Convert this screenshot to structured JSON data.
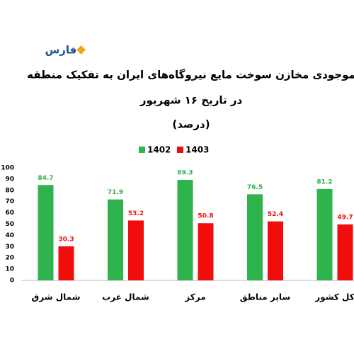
{
  "logo": "فارس",
  "chart_data": {
    "type": "bar",
    "title": "موجودی مخازن سوخت مایع نیروگاه‌های ایران به تفکیک منطقه",
    "subtitle": "در تاریخ ۱۶ شهریور",
    "unit_label": "(درصد)",
    "categories": [
      "شمال شرق",
      "شمال غرب",
      "مرکز",
      "سایر مناطق",
      "کل کشور"
    ],
    "series": [
      {
        "name": "1402",
        "color": "#2fb34d",
        "values": [
          84.7,
          71.9,
          89.3,
          76.5,
          81.2
        ]
      },
      {
        "name": "1403",
        "color": "#f20d0d",
        "values": [
          30.3,
          53.2,
          50.8,
          52.4,
          49.7
        ]
      }
    ],
    "ylim": [
      0,
      100
    ],
    "yticks": [
      0,
      10,
      20,
      30,
      40,
      50,
      60,
      70,
      80,
      90,
      100
    ],
    "grid": false,
    "legend": "top"
  }
}
